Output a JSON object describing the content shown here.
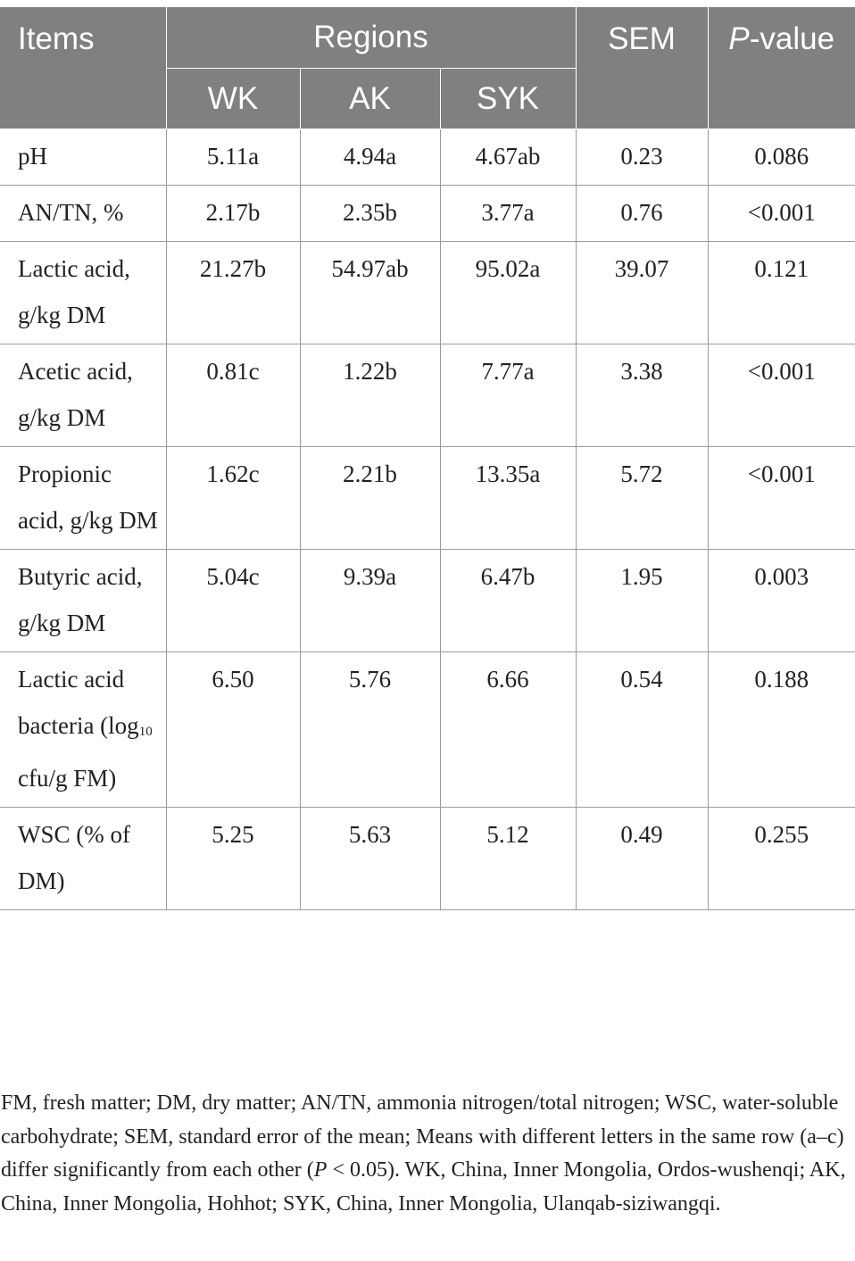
{
  "header": {
    "items": "Items",
    "regions": "Regions",
    "wk": "WK",
    "ak": "AK",
    "syk": "SYK",
    "sem": "SEM",
    "p_italic": "P",
    "p_rest": "-value"
  },
  "rows": [
    {
      "item": "pH",
      "wk": "5.11a",
      "ak": "4.94a",
      "syk": "4.67ab",
      "sem": "0.23",
      "p": "0.086"
    },
    {
      "item": "AN/TN, %",
      "wk": "2.17b",
      "ak": "2.35b",
      "syk": "3.77a",
      "sem": "0.76",
      "p": "<0.001"
    },
    {
      "item": "Lactic acid, g/kg DM",
      "wk": "21.27b",
      "ak": "54.97ab",
      "syk": "95.02a",
      "sem": "39.07",
      "p": "0.121"
    },
    {
      "item": "Acetic acid, g/kg DM",
      "wk": "0.81c",
      "ak": "1.22b",
      "syk": "7.77a",
      "sem": "3.38",
      "p": "<0.001"
    },
    {
      "item": "Propionic acid, g/kg DM",
      "wk": "1.62c",
      "ak": "2.21b",
      "syk": "13.35a",
      "sem": "5.72",
      "p": "<0.001"
    },
    {
      "item": "Butyric acid, g/kg DM",
      "wk": "5.04c",
      "ak": "9.39a",
      "syk": "6.47b",
      "sem": "1.95",
      "p": "0.003"
    },
    {
      "item_pre": "Lactic acid bacteria (log",
      "item_sub": "10",
      "item_post": " cfu/g FM)",
      "wk": "6.50",
      "ak": "5.76",
      "syk": "6.66",
      "sem": "0.54",
      "p": "0.188"
    },
    {
      "item": "WSC (% of DM)",
      "wk": "5.25",
      "ak": "5.63",
      "syk": "5.12",
      "sem": "0.49",
      "p": "0.255"
    }
  ],
  "footnote": {
    "part1": "FM, fresh matter; DM, dry matter; AN/TN, ammonia nitrogen/total nitrogen; WSC, water-soluble carbohydrate; SEM, standard error of the mean; Means with different letters in the same row (a–c) differ significantly from each other (",
    "p_italic": "P",
    "part2": " < 0.05). WK, China, Inner Mongolia, Ordos-wushenqi; AK, China, Inner Mongolia, Hohhot; SYK, China, Inner Mongolia, Ulanqab-siziwangqi."
  }
}
